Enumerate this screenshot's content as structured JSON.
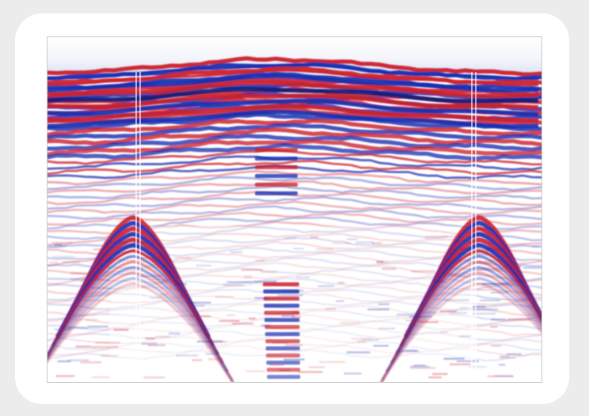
{
  "figure": {
    "type": "gpr-radargram",
    "description_icon": "radargram-image",
    "colors": {
      "page_background": "#ececec",
      "card_background": "#ffffff",
      "positive_amplitude": "#cc1f2a",
      "negative_amplitude": "#1a2fb0",
      "neutral": "#ffffff"
    }
  }
}
